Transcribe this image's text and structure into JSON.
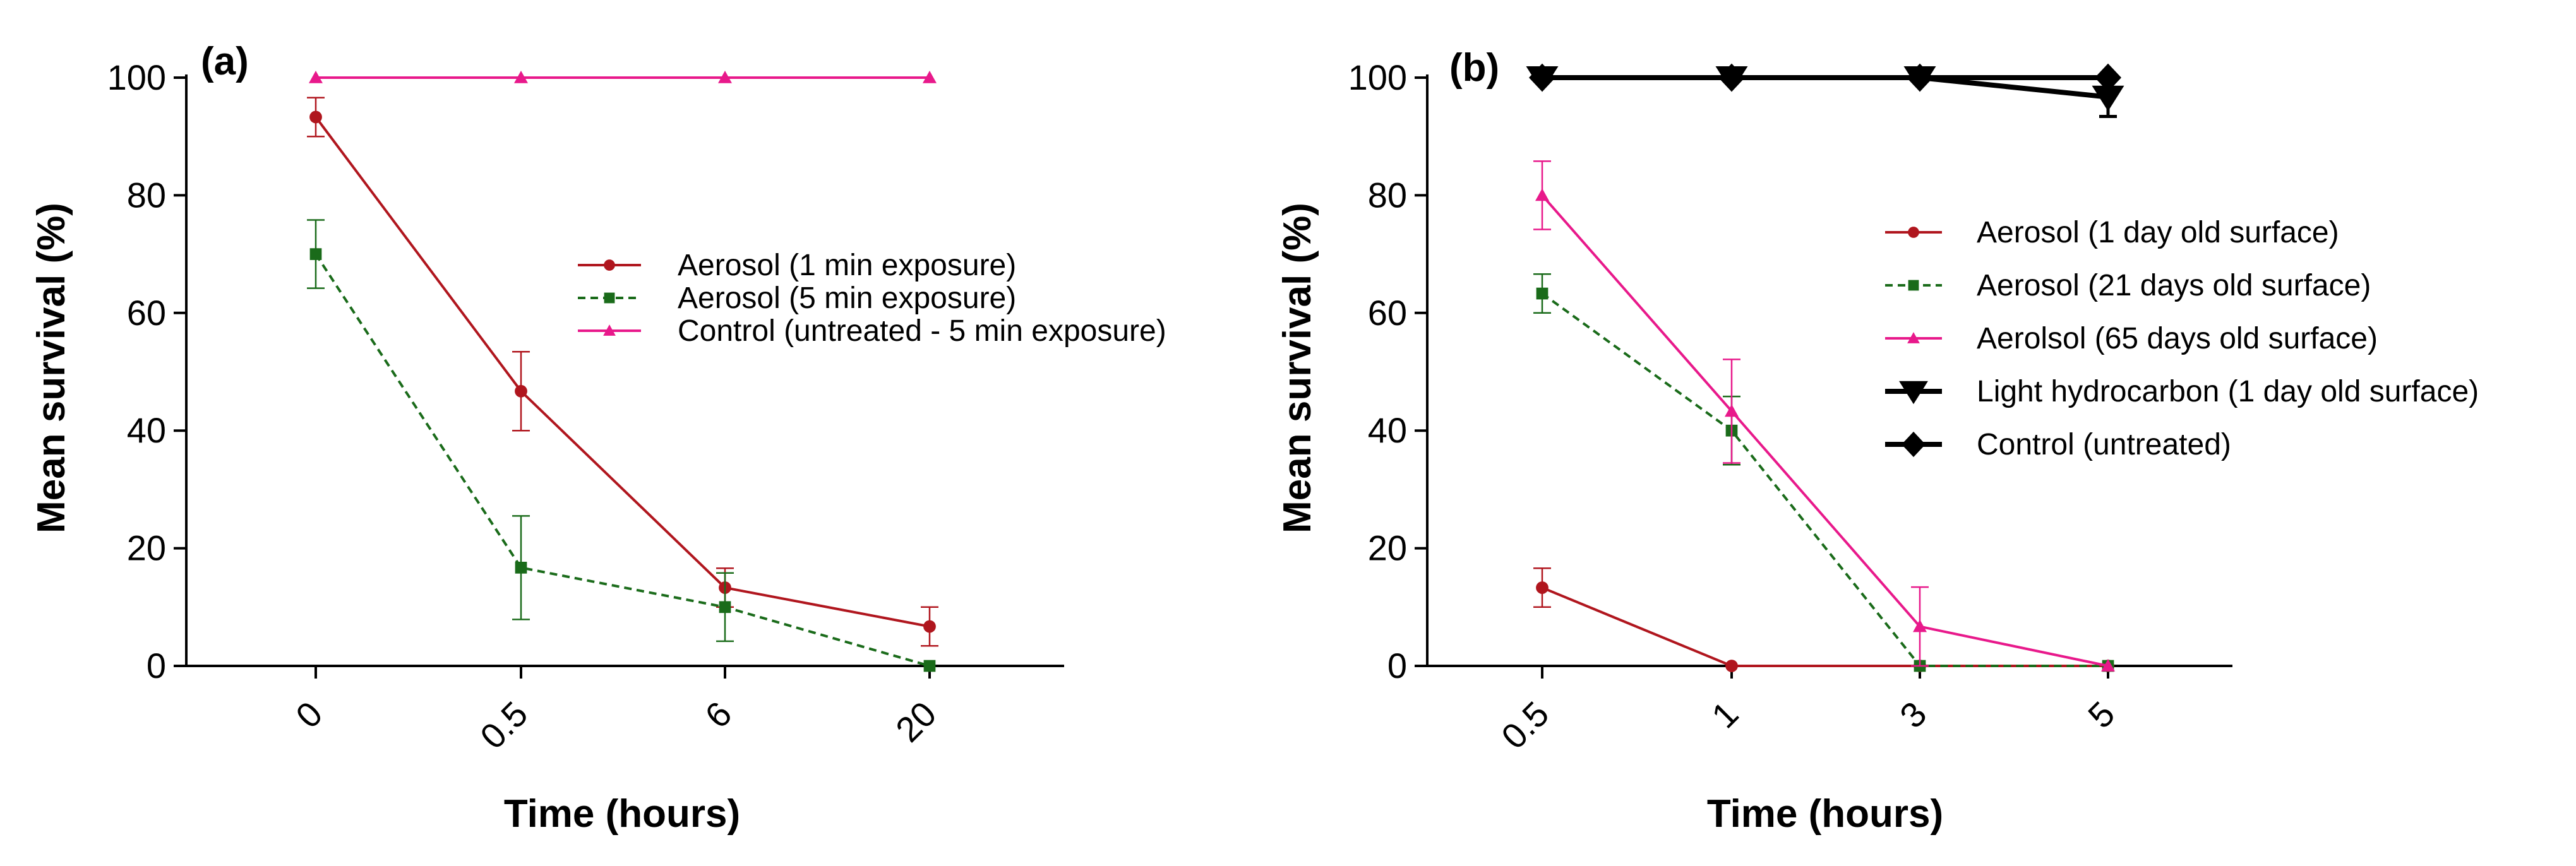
{
  "chart_data": [
    {
      "type": "line",
      "panel_label": "(a)",
      "title": "",
      "xlabel": "Time (hours)",
      "ylabel": "Mean survival (%)",
      "categories": [
        "0",
        "0.5",
        "6",
        "20"
      ],
      "ylim": [
        0,
        100
      ],
      "yticks": [
        "0",
        "20",
        "40",
        "60",
        "80",
        "100"
      ],
      "legend_position": "center-right",
      "series": [
        {
          "name": "Aerosol (1 min exposure)",
          "color": "#b0161e",
          "dash": "solid",
          "marker": "circle",
          "values": [
            93.3,
            46.7,
            13.3,
            6.7
          ],
          "errors": [
            3.3,
            6.7,
            3.3,
            3.3
          ]
        },
        {
          "name": "Aerosol (5 min exposure)",
          "color": "#1a6b1a",
          "dash": "dashed",
          "marker": "square",
          "values": [
            70.0,
            16.7,
            10.0,
            0.0
          ],
          "errors": [
            5.8,
            8.8,
            5.8,
            0.0
          ]
        },
        {
          "name": "Control (untreated - 5 min exposure)",
          "color": "#e8198b",
          "dash": "solid",
          "marker": "triangle-up",
          "values": [
            100,
            100,
            100,
            100
          ],
          "errors": [
            0,
            0,
            0,
            0
          ]
        }
      ]
    },
    {
      "type": "line",
      "panel_label": "(b)",
      "title": "",
      "xlabel": "Time (hours)",
      "ylabel": "Mean survival (%)",
      "categories": [
        "0.5",
        "1",
        "3",
        "5"
      ],
      "ylim": [
        0,
        100
      ],
      "yticks": [
        "0",
        "20",
        "40",
        "60",
        "80",
        "100"
      ],
      "legend_position": "center-right",
      "series": [
        {
          "name": "Aerosol (1 day old surface)",
          "color": "#b0161e",
          "dash": "solid",
          "marker": "circle",
          "values": [
            13.3,
            0,
            0,
            0
          ],
          "errors": [
            3.3,
            0,
            0,
            0
          ]
        },
        {
          "name": "Aerosol (21 days old surface)",
          "color": "#1a6b1a",
          "dash": "dashed",
          "marker": "square",
          "values": [
            63.3,
            40.0,
            0,
            0
          ],
          "errors": [
            3.3,
            5.8,
            0,
            0
          ]
        },
        {
          "name": "Aerolsol (65 days old surface)",
          "color": "#e8198b",
          "dash": "solid",
          "marker": "triangle-up",
          "values": [
            80.0,
            43.3,
            6.7,
            0
          ],
          "errors": [
            5.8,
            8.8,
            6.7,
            0
          ]
        },
        {
          "name": "Light hydrocarbon (1 day old surface)",
          "color": "#000000",
          "dash": "solid",
          "marker": "triangle-down",
          "values": [
            100,
            100,
            100,
            96.7
          ],
          "errors": [
            0,
            0,
            0,
            3.3
          ]
        },
        {
          "name": "Control (untreated)",
          "color": "#000000",
          "dash": "solid",
          "marker": "diamond",
          "values": [
            100,
            100,
            100,
            100
          ],
          "errors": [
            0,
            0,
            0,
            0
          ]
        }
      ]
    }
  ]
}
